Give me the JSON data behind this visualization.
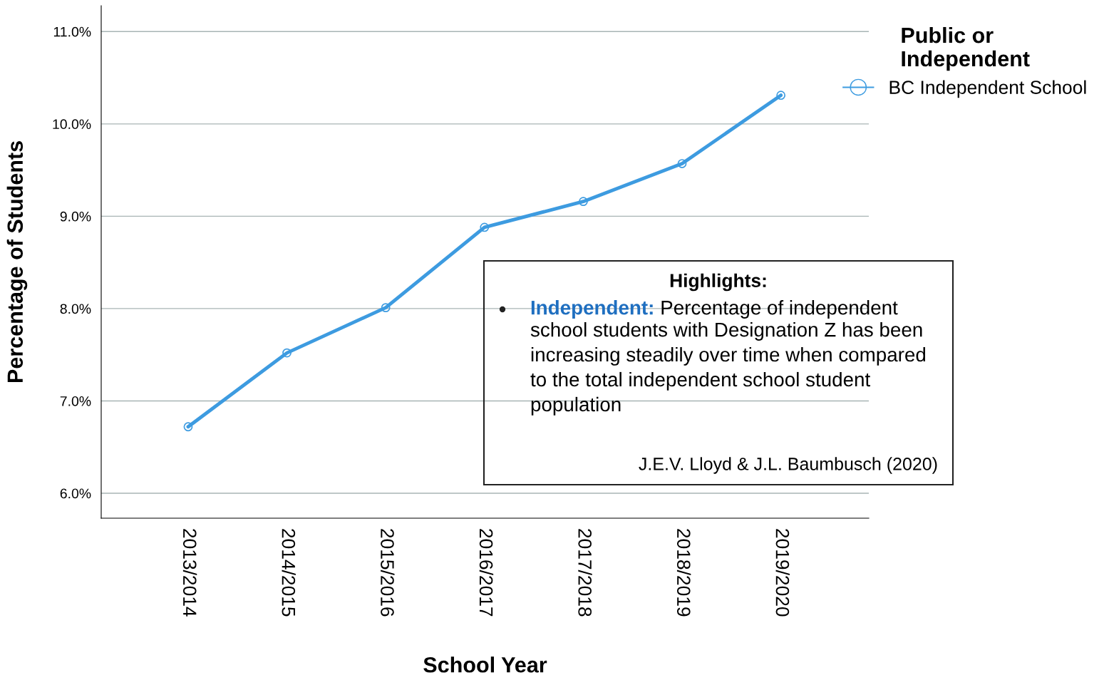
{
  "chart_data": {
    "type": "line",
    "xlabel": "School Year",
    "ylabel": "Percentage of Students",
    "legend_title": "Public or\nIndependent",
    "categories": [
      "2013/2014",
      "2014/2015",
      "2015/2016",
      "2016/2017",
      "2017/2018",
      "2018/2019",
      "2019/2020"
    ],
    "series": [
      {
        "name": "BC Independent School",
        "color": "#3d9be0",
        "values": [
          6.72,
          7.52,
          8.01,
          8.88,
          9.16,
          9.57,
          10.31
        ]
      }
    ],
    "ylim": [
      5.73,
      11.28
    ],
    "yticks": [
      {
        "value": 6,
        "label": "6.0%"
      },
      {
        "value": 7,
        "label": "7.0%"
      },
      {
        "value": 8,
        "label": "8.0%"
      },
      {
        "value": 9,
        "label": "9.0%"
      },
      {
        "value": 10,
        "label": "10.0%"
      },
      {
        "value": 11,
        "label": "11.0%"
      }
    ],
    "grid": "y",
    "legend": "top right",
    "marker": "circle",
    "line_style": "solid",
    "annotations": [
      "Highlights:",
      "Independent:",
      "Percentage of independent\nschool students with Designation Z has been\nincreasing steadily over time when compared\nto the total independent school student\npopulation",
      "J.E.V. Lloyd & J.L. Baumbusch (2020)"
    ]
  }
}
